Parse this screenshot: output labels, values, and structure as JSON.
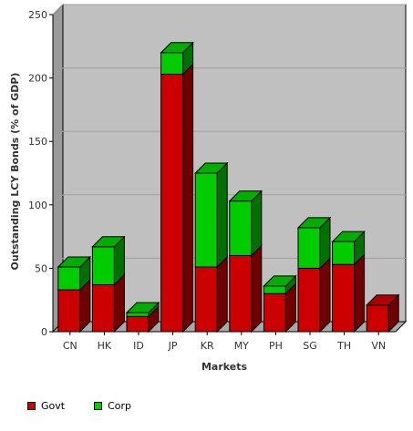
{
  "chart_data": {
    "type": "bar",
    "stacked": true,
    "style": "3d",
    "categories": [
      "CN",
      "HK",
      "ID",
      "JP",
      "KR",
      "MY",
      "PH",
      "SG",
      "TH",
      "VN"
    ],
    "series": [
      {
        "name": "Govt",
        "color": "#cc0000",
        "values": [
          33,
          37,
          12,
          203,
          51,
          60,
          30,
          50,
          53,
          21
        ]
      },
      {
        "name": "Corp",
        "color": "#00cc00",
        "values": [
          18,
          30,
          3,
          17,
          74,
          43,
          6,
          32,
          18,
          0
        ]
      }
    ],
    "xlabel": "Markets",
    "ylabel": "Outstanding LCY Bonds (% of GDP)",
    "ylim": [
      0,
      250
    ],
    "yticks": [
      0,
      50,
      100,
      150,
      200,
      250
    ],
    "grid": true,
    "legend_position": "bottom-left",
    "plot_background": "#c0c0c0",
    "grid_color": "#a0a0a0"
  }
}
